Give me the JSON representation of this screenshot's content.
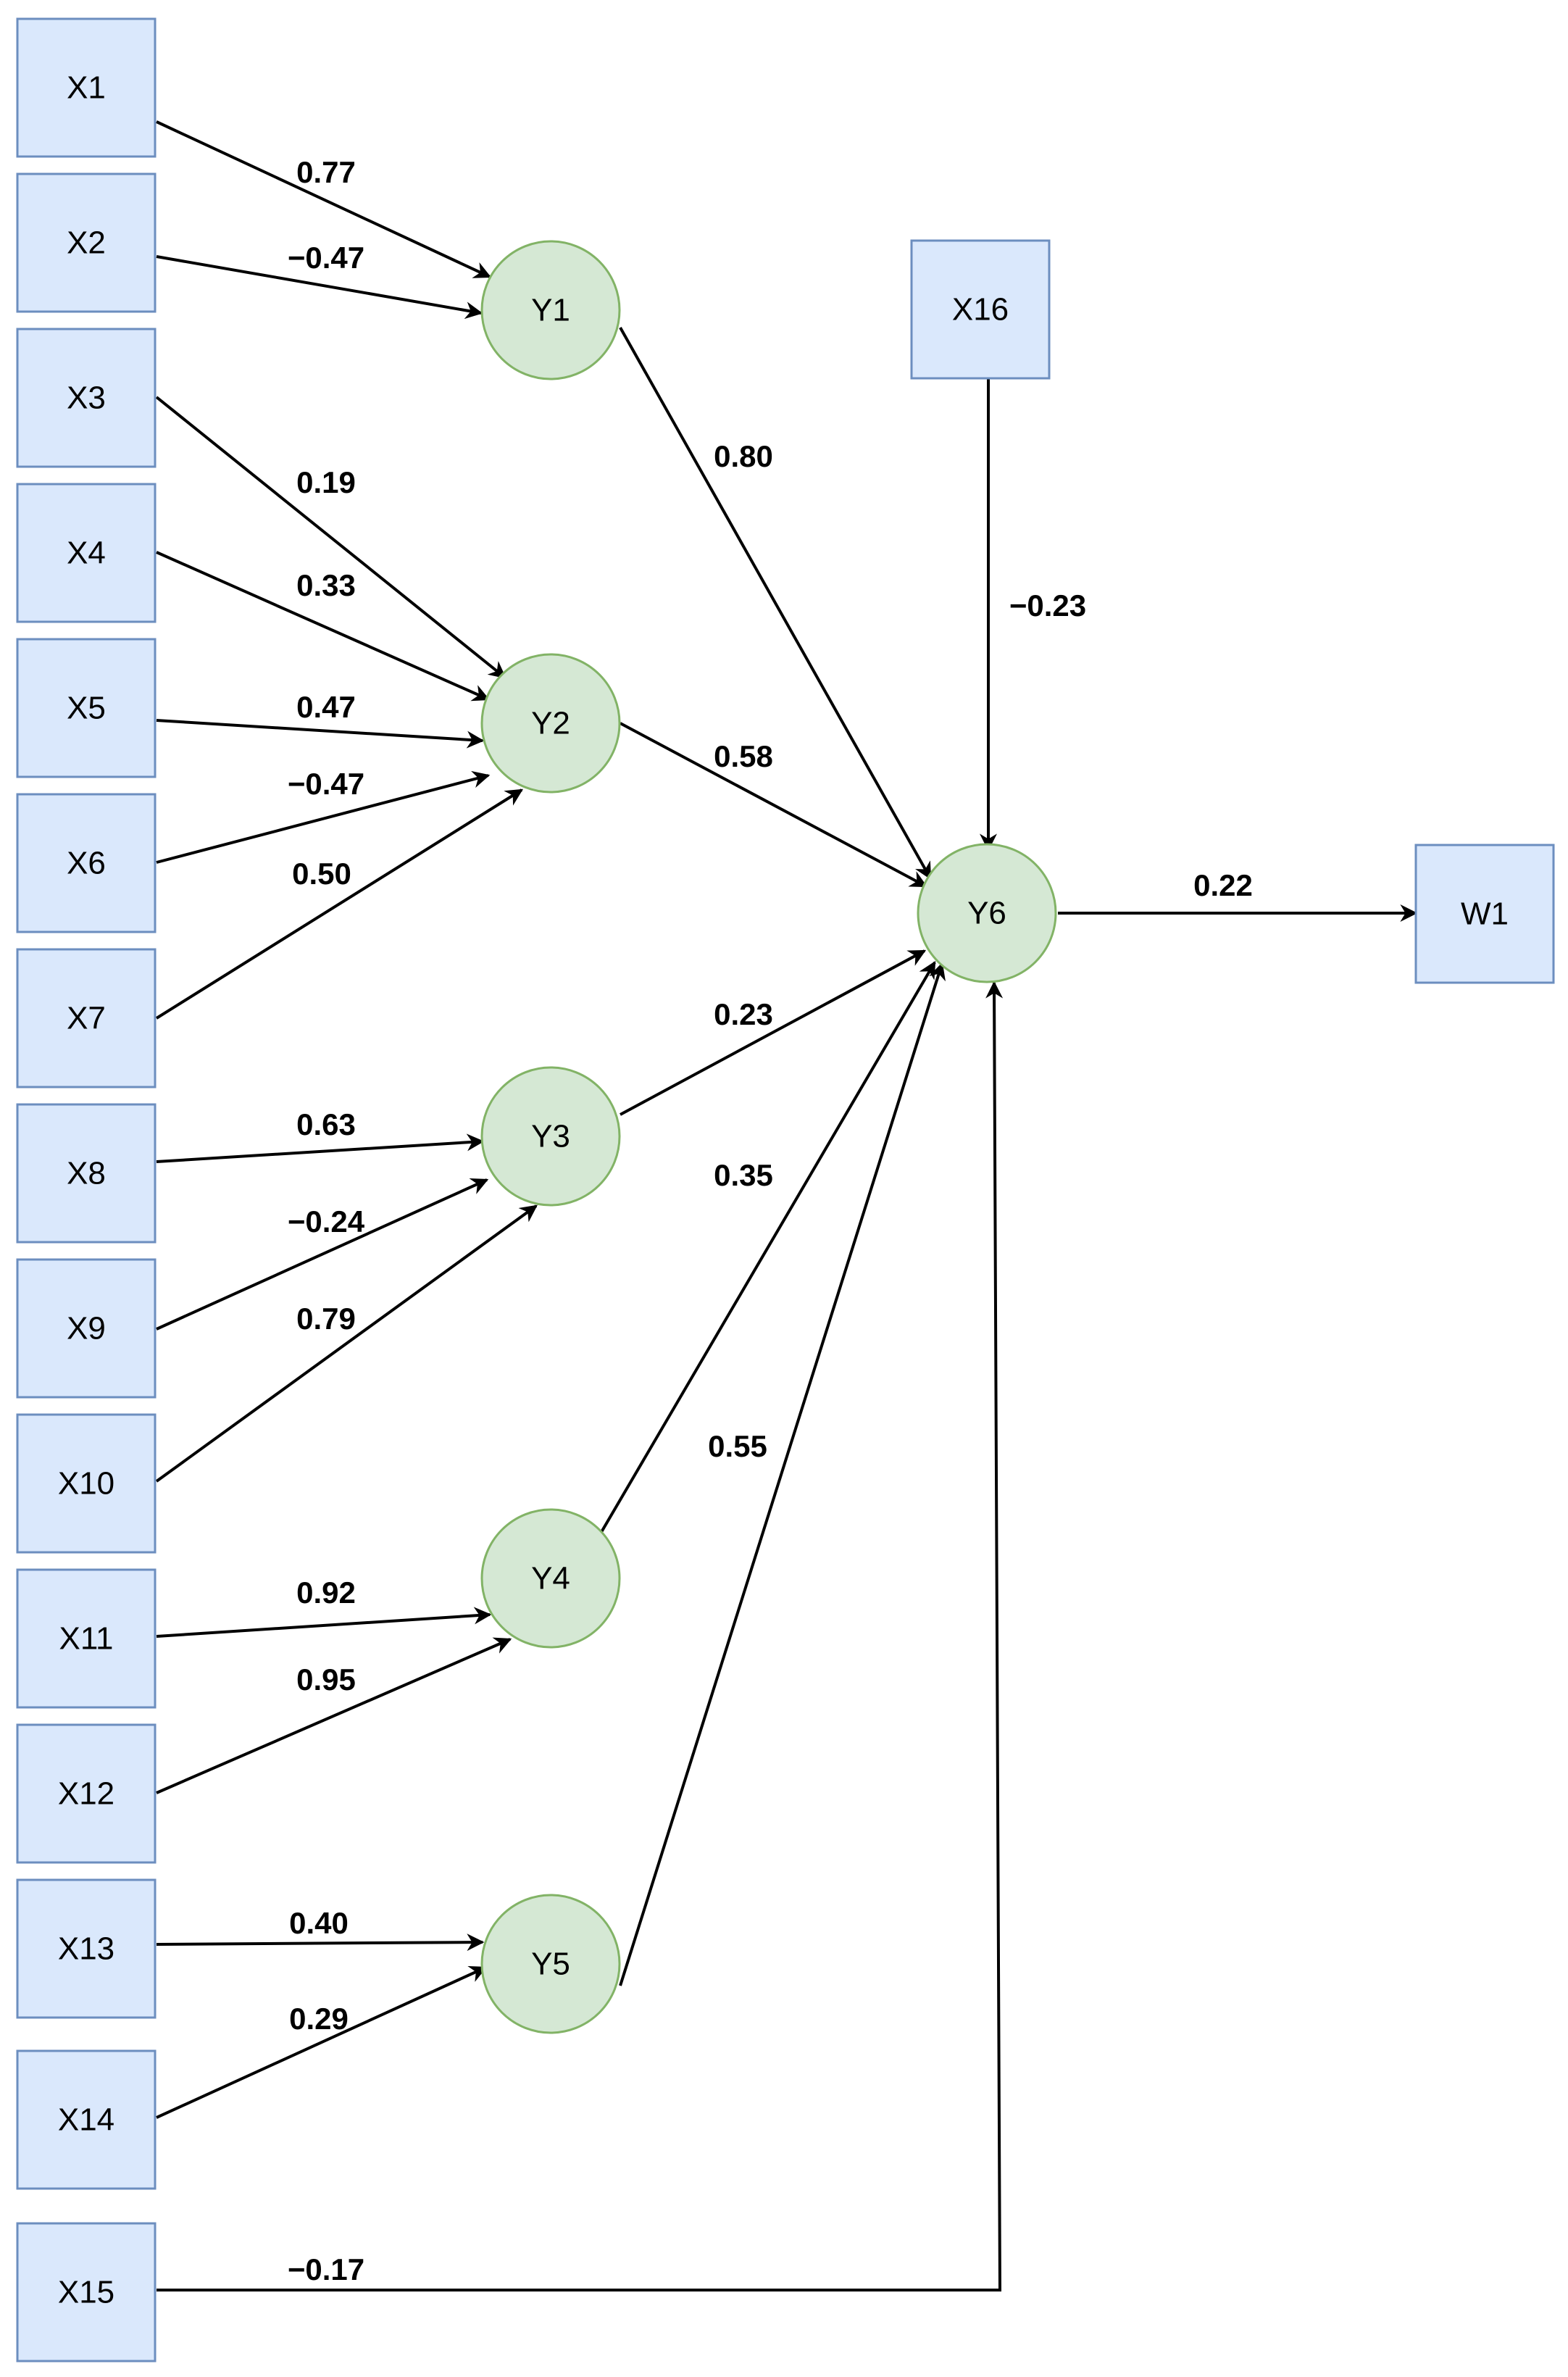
{
  "nodes": {
    "X1": "X1",
    "X2": "X2",
    "X3": "X3",
    "X4": "X4",
    "X5": "X5",
    "X6": "X6",
    "X7": "X7",
    "X8": "X8",
    "X9": "X9",
    "X10": "X10",
    "X11": "X11",
    "X12": "X12",
    "X13": "X13",
    "X14": "X14",
    "X15": "X15",
    "X16": "X16",
    "Y1": "Y1",
    "Y2": "Y2",
    "Y3": "Y3",
    "Y4": "Y4",
    "Y5": "Y5",
    "Y6": "Y6",
    "W1": "W1"
  },
  "edges": [
    {
      "from": "X1",
      "to": "Y1",
      "weight": "0.77"
    },
    {
      "from": "X2",
      "to": "Y1",
      "weight": "−0.47"
    },
    {
      "from": "X3",
      "to": "Y2",
      "weight": "0.19"
    },
    {
      "from": "X4",
      "to": "Y2",
      "weight": "0.33"
    },
    {
      "from": "X5",
      "to": "Y2",
      "weight": "0.47"
    },
    {
      "from": "X6",
      "to": "Y2",
      "weight": "−0.47"
    },
    {
      "from": "X7",
      "to": "Y2",
      "weight": "0.50"
    },
    {
      "from": "X8",
      "to": "Y3",
      "weight": "0.63"
    },
    {
      "from": "X9",
      "to": "Y3",
      "weight": "−0.24"
    },
    {
      "from": "X10",
      "to": "Y3",
      "weight": "0.79"
    },
    {
      "from": "X11",
      "to": "Y4",
      "weight": "0.92"
    },
    {
      "from": "X12",
      "to": "Y4",
      "weight": "0.95"
    },
    {
      "from": "X13",
      "to": "Y5",
      "weight": "0.40"
    },
    {
      "from": "X14",
      "to": "Y5",
      "weight": "0.29"
    },
    {
      "from": "Y1",
      "to": "Y6",
      "weight": "0.80"
    },
    {
      "from": "Y2",
      "to": "Y6",
      "weight": "0.58"
    },
    {
      "from": "Y3",
      "to": "Y6",
      "weight": "0.23"
    },
    {
      "from": "Y4",
      "to": "Y6",
      "weight": "0.35"
    },
    {
      "from": "Y5",
      "to": "Y6",
      "weight": "0.55"
    },
    {
      "from": "X16",
      "to": "Y6",
      "weight": "−0.23"
    },
    {
      "from": "X15",
      "to": "Y6",
      "weight": "−0.17"
    },
    {
      "from": "Y6",
      "to": "W1",
      "weight": "0.22"
    }
  ],
  "colors": {
    "box_fill": "#dae8fc",
    "box_stroke": "#6c8ebf",
    "circle_fill": "#d5e8d4",
    "circle_stroke": "#82b366",
    "edge": "#000000"
  }
}
